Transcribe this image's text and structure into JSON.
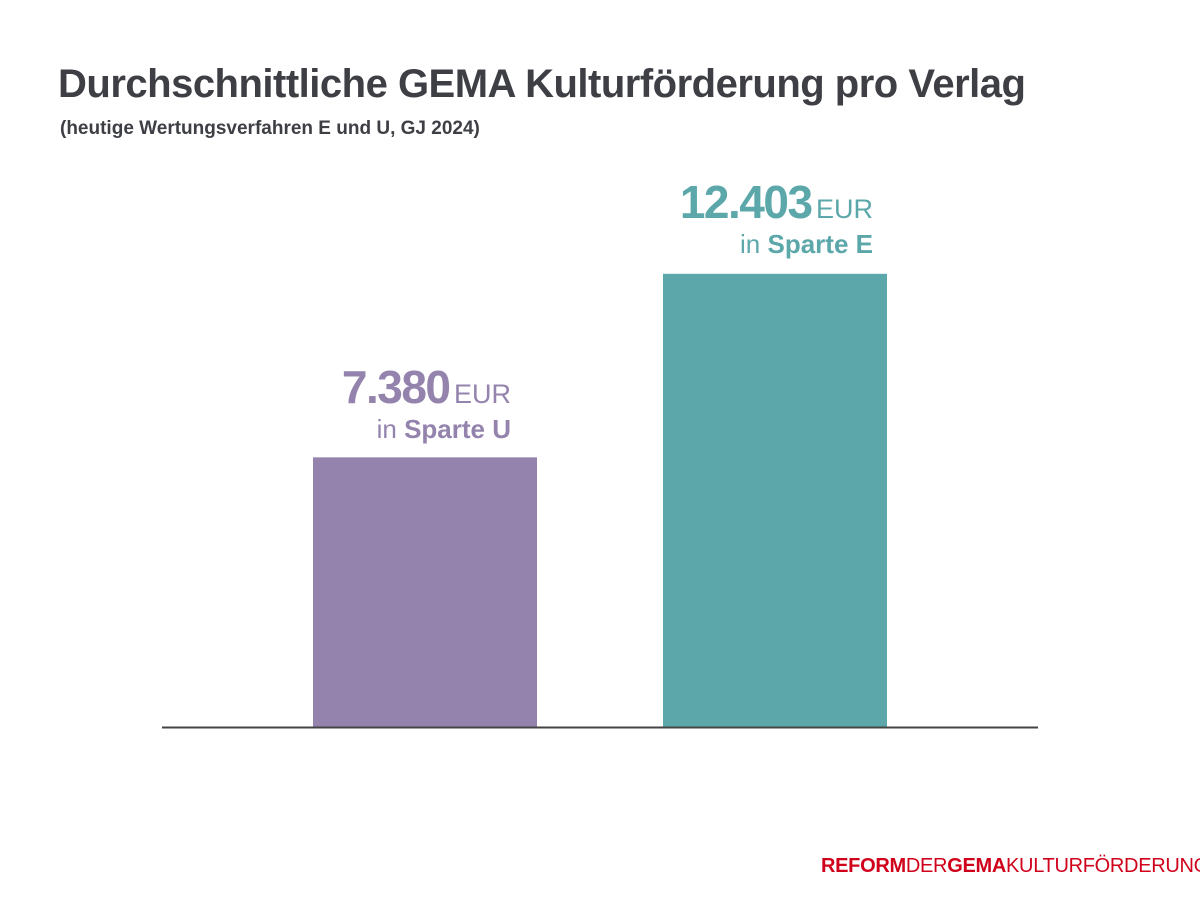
{
  "chart_data": {
    "type": "bar",
    "title": "Durchschnittliche GEMA Kulturförderung pro Verlag",
    "subtitle": "(heutige Wertungsverfahren E und U, GJ 2024)",
    "categories": [
      "Sparte U",
      "Sparte E"
    ],
    "values": [
      7380,
      12403
    ],
    "value_labels": [
      "7.380",
      "12.403"
    ],
    "unit": "EUR",
    "category_prefix": "in",
    "colors": [
      "#9383ad",
      "#5ba7a9"
    ],
    "axis_color": "#444444",
    "ylim": [
      0,
      13000
    ],
    "grid": false,
    "xlabel": "",
    "ylabel": ""
  },
  "logo": {
    "part1": "REFORM",
    "part2": "DER",
    "part3": "GEMA",
    "part4": "KULTURFÖRDERUNG",
    "color": "#d0021b"
  }
}
